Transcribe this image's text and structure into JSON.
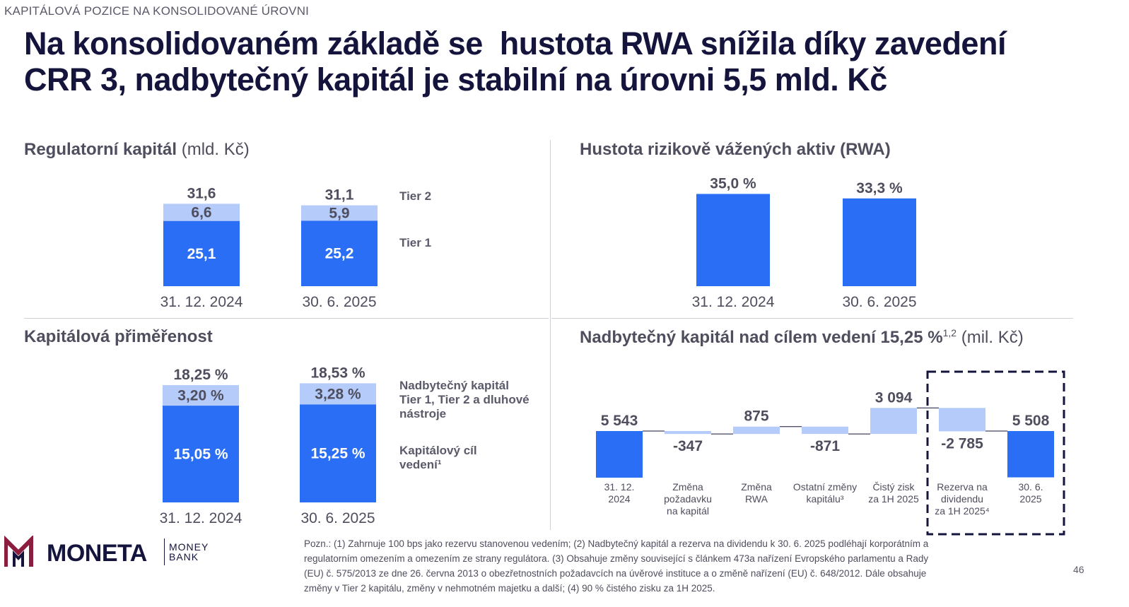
{
  "header": {
    "section_label": "KAPITÁLOVÁ POZICE NA KONSOLIDOVANÉ ÚROVNI",
    "title_line1": "Na konsolidovaném základě se  hustota RWA snížila díky zavedení",
    "title_line2": "CRR 3, nadbytečný kapitál je stabilní na úrovni 5,5 mld. Kč"
  },
  "colors": {
    "primary_bar": "#2a6ef5",
    "secondary_bar": "#b5ccfb",
    "title": "#14143c",
    "logo_accent": "#8c1d3e"
  },
  "panel_regcap": {
    "title": "Regulatorní kapitál",
    "subtitle": "(mld. Kč)",
    "legend_tier2": "Tier 2",
    "legend_tier1": "Tier 1"
  },
  "panel_rwa": {
    "title": "Hustota rizikově vážených aktiv (RWA)"
  },
  "panel_car": {
    "title": "Kapitálová přiměřenost",
    "legend_surplus_line1": "Nadbytečný kapitál",
    "legend_surplus_line2": "Tier 1, Tier 2 a dluhové",
    "legend_surplus_line3": "nástroje",
    "legend_target_line1": "Kapitálový cíl",
    "legend_target_line2": "vedení¹"
  },
  "panel_excess": {
    "title": "Nadbytečný kapitál nad cílem vedení 15,25 %",
    "title_sup": "1,2",
    "subtitle": "(mil. Kč)"
  },
  "chart_data": [
    {
      "type": "bar",
      "stacked": true,
      "title": "Regulatorní kapitál (mld. Kč)",
      "categories": [
        "31. 12. 2024",
        "30. 6. 2025"
      ],
      "series": [
        {
          "name": "Tier 1",
          "values": [
            25.1,
            25.2
          ],
          "labels": [
            "25,1",
            "25,2"
          ]
        },
        {
          "name": "Tier 2",
          "values": [
            6.6,
            5.9
          ],
          "labels": [
            "6,6",
            "5,9"
          ]
        }
      ],
      "totals": [
        31.6,
        31.1
      ],
      "total_labels": [
        "31,6",
        "31,1"
      ]
    },
    {
      "type": "bar",
      "title": "Hustota rizikově vážených aktiv (RWA)",
      "categories": [
        "31. 12. 2024",
        "30. 6. 2025"
      ],
      "values": [
        35.0,
        33.3
      ],
      "value_labels": [
        "35,0 %",
        "33,3 %"
      ]
    },
    {
      "type": "bar",
      "stacked": true,
      "title": "Kapitálová přiměřenost",
      "categories": [
        "31. 12. 2024",
        "30. 6. 2025"
      ],
      "series": [
        {
          "name": "Kapitálový cíl vedení¹",
          "values": [
            15.05,
            15.25
          ],
          "labels": [
            "15,05 %",
            "15,25 %"
          ]
        },
        {
          "name": "Nadbytečný kapitál Tier 1, Tier 2 a dluhové nástroje",
          "values": [
            3.2,
            3.28
          ],
          "labels": [
            "3,20 %",
            "3,28 %"
          ]
        }
      ],
      "totals": [
        18.25,
        18.53
      ],
      "total_labels": [
        "18,25 %",
        "18,53 %"
      ]
    },
    {
      "type": "waterfall",
      "title": "Nadbytečný kapitál nad cílem vedení 15,25 % (mil. Kč)",
      "steps": [
        {
          "label_lines": [
            "31. 12.",
            "2024"
          ],
          "value": 5543,
          "value_label": "5 543",
          "kind": "total"
        },
        {
          "label_lines": [
            "Změna",
            "požadavku",
            "na kapitál"
          ],
          "value": -347,
          "value_label": "-347",
          "kind": "delta"
        },
        {
          "label_lines": [
            "Změna",
            "RWA"
          ],
          "value": 875,
          "value_label": "875",
          "kind": "delta"
        },
        {
          "label_lines": [
            "Ostatní změny",
            "kapitálu³"
          ],
          "value": -871,
          "value_label": "-871",
          "kind": "delta"
        },
        {
          "label_lines": [
            "Čistý zisk",
            "za 1H 2025"
          ],
          "value": 3094,
          "value_label": "3 094",
          "kind": "delta"
        },
        {
          "label_lines": [
            "Rezerva na",
            "dividendu",
            "za 1H 2025⁴"
          ],
          "value": -2785,
          "value_label": "-2 785",
          "kind": "delta"
        },
        {
          "label_lines": [
            "30. 6.",
            "2025"
          ],
          "value": 5508,
          "value_label": "5 508",
          "kind": "total"
        }
      ],
      "highlighted_steps": [
        5,
        6
      ]
    }
  ],
  "footer": {
    "note_line1": "Pozn.: (1) Zahrnuje 100 bps jako rezervu stanovenou vedením; (2) Nadbytečný kapitál a rezerva na dividendu k 30. 6. 2025 podléhají korporátním a",
    "note_line2": "regulatorním omezením a omezením ze strany regulátora. (3) Obsahuje změny související s článkem 473a nařízení Evropského parlamentu a Rady",
    "note_line3": "(EU) č. 575/2013 ze dne 26. června 2013 o obezřetnostních požadavcích na úvěrové instituce a o změně nařízení (EU) č. 648/2012. Dále obsahuje",
    "note_line4": "změny v Tier 2 kapitálu, změny v nehmotném majetku a další; (4) 90 % čistého zisku za 1H 2025.",
    "page_number": "46",
    "logo_text": "MONETA",
    "logo_sub1": "MONEY",
    "logo_sub2": "BANK"
  }
}
